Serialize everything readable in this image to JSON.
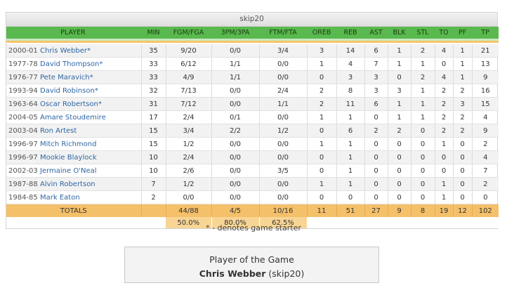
{
  "team": "skip20",
  "headers": [
    "PLAYER",
    "MIN",
    "FGM/FGA",
    "3PM/3PA",
    "FTM/FTA",
    "OREB",
    "REB",
    "AST",
    "BLK",
    "STL",
    "TO",
    "PF",
    "TP"
  ],
  "players": [
    {
      "season": "2000-01",
      "name": "Chris Webber*",
      "min": "35",
      "fg": "9/20",
      "tp3": "0/0",
      "ft": "3/4",
      "oreb": "3",
      "reb": "14",
      "ast": "6",
      "blk": "1",
      "stl": "2",
      "to": "4",
      "pf": "1",
      "pts": "21"
    },
    {
      "season": "1977-78",
      "name": "David Thompson*",
      "min": "33",
      "fg": "6/12",
      "tp3": "1/1",
      "ft": "0/0",
      "oreb": "1",
      "reb": "4",
      "ast": "7",
      "blk": "1",
      "stl": "1",
      "to": "0",
      "pf": "1",
      "pts": "13"
    },
    {
      "season": "1976-77",
      "name": "Pete Maravich*",
      "min": "33",
      "fg": "4/9",
      "tp3": "1/1",
      "ft": "0/0",
      "oreb": "0",
      "reb": "3",
      "ast": "3",
      "blk": "0",
      "stl": "2",
      "to": "4",
      "pf": "1",
      "pts": "9"
    },
    {
      "season": "1993-94",
      "name": "David Robinson*",
      "min": "32",
      "fg": "7/13",
      "tp3": "0/0",
      "ft": "2/4",
      "oreb": "2",
      "reb": "8",
      "ast": "3",
      "blk": "3",
      "stl": "1",
      "to": "2",
      "pf": "2",
      "pts": "16"
    },
    {
      "season": "1963-64",
      "name": "Oscar Robertson*",
      "min": "31",
      "fg": "7/12",
      "tp3": "0/0",
      "ft": "1/1",
      "oreb": "2",
      "reb": "11",
      "ast": "6",
      "blk": "1",
      "stl": "1",
      "to": "2",
      "pf": "3",
      "pts": "15"
    },
    {
      "season": "2004-05",
      "name": "Amare Stoudemire",
      "min": "17",
      "fg": "2/4",
      "tp3": "0/1",
      "ft": "0/0",
      "oreb": "1",
      "reb": "1",
      "ast": "0",
      "blk": "1",
      "stl": "1",
      "to": "2",
      "pf": "2",
      "pts": "4"
    },
    {
      "season": "2003-04",
      "name": "Ron Artest",
      "min": "15",
      "fg": "3/4",
      "tp3": "2/2",
      "ft": "1/2",
      "oreb": "0",
      "reb": "6",
      "ast": "2",
      "blk": "2",
      "stl": "0",
      "to": "2",
      "pf": "2",
      "pts": "9"
    },
    {
      "season": "1996-97",
      "name": "Mitch Richmond",
      "min": "15",
      "fg": "1/2",
      "tp3": "0/0",
      "ft": "0/0",
      "oreb": "1",
      "reb": "1",
      "ast": "0",
      "blk": "0",
      "stl": "0",
      "to": "1",
      "pf": "0",
      "pts": "2"
    },
    {
      "season": "1996-97",
      "name": "Mookie Blaylock",
      "min": "10",
      "fg": "2/4",
      "tp3": "0/0",
      "ft": "0/0",
      "oreb": "0",
      "reb": "1",
      "ast": "0",
      "blk": "0",
      "stl": "0",
      "to": "0",
      "pf": "0",
      "pts": "4"
    },
    {
      "season": "2002-03",
      "name": "Jermaine O'Neal",
      "min": "10",
      "fg": "2/6",
      "tp3": "0/0",
      "ft": "3/5",
      "oreb": "0",
      "reb": "1",
      "ast": "0",
      "blk": "0",
      "stl": "0",
      "to": "0",
      "pf": "0",
      "pts": "7"
    },
    {
      "season": "1987-88",
      "name": "Alvin Robertson",
      "min": "7",
      "fg": "1/2",
      "tp3": "0/0",
      "ft": "0/0",
      "oreb": "1",
      "reb": "1",
      "ast": "0",
      "blk": "0",
      "stl": "0",
      "to": "1",
      "pf": "0",
      "pts": "2"
    },
    {
      "season": "1984-85",
      "name": "Mark Eaton",
      "min": "2",
      "fg": "0/0",
      "tp3": "0/0",
      "ft": "0/0",
      "oreb": "0",
      "reb": "0",
      "ast": "0",
      "blk": "0",
      "stl": "0",
      "to": "1",
      "pf": "0",
      "pts": "0"
    }
  ],
  "totals": {
    "label": "TOTALS",
    "min": "",
    "fg": "44/88",
    "tp3": "4/5",
    "ft": "10/16",
    "oreb": "11",
    "reb": "51",
    "ast": "27",
    "blk": "9",
    "stl": "8",
    "to": "19",
    "pf": "12",
    "pts": "102"
  },
  "percentages": {
    "fg": "50.0%",
    "tp3": "80.0%",
    "ft": "62.5%"
  },
  "starter_note": "* - denotes game starter",
  "player_of_game": {
    "title": "Player of the Game",
    "name": "Chris Webber",
    "team": "(skip20)"
  }
}
